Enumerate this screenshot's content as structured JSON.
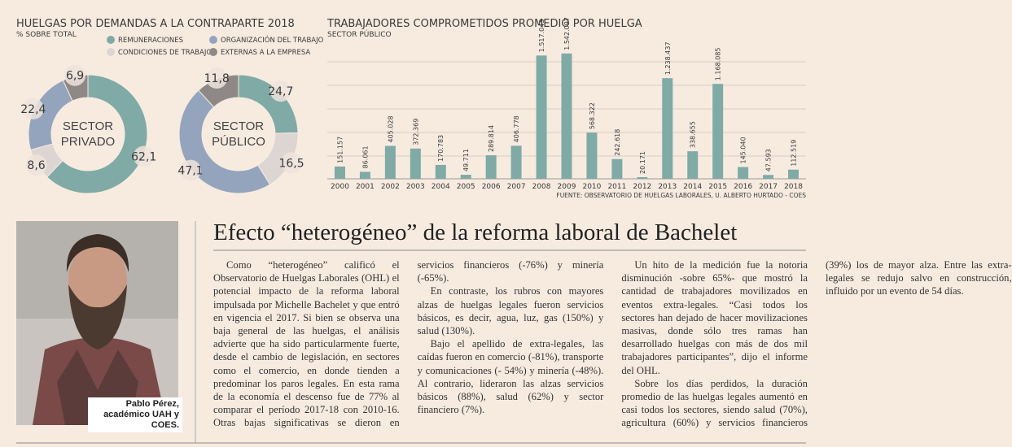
{
  "chart_data": [
    {
      "type": "donut",
      "title": "HUELGAS POR DEMANDAS A LA CONTRAPARTE 2018",
      "subtitle": "% SOBRE TOTAL",
      "categories": [
        "REMUNERACIONES",
        "CONDICIONES DE TRABAJO",
        "ORGANIZACIÓN DEL TRABAJO",
        "EXTERNAS A LA EMPRESA"
      ],
      "colors": [
        "#7faaa6",
        "#dcd5d1",
        "#94a4bd",
        "#8e8986"
      ],
      "series": [
        {
          "name": "SECTOR PRIVADO",
          "values": [
            62.1,
            8.6,
            22.4,
            6.9
          ],
          "value_labels": [
            "62,1",
            "8,6",
            "22,4",
            "6,9"
          ]
        },
        {
          "name": "SECTOR PÚBLICO",
          "values": [
            24.7,
            16.5,
            47.1,
            11.8
          ],
          "value_labels": [
            "24,7",
            "16,5",
            "47,1",
            "11,8"
          ]
        }
      ]
    },
    {
      "type": "bar",
      "title": "TRABAJADORES COMPROMETIDOS PROMEDIO POR HUELGA",
      "subtitle": "SECTOR PÚBLICO",
      "categories": [
        "2000",
        "2001",
        "2002",
        "2003",
        "2004",
        "2005",
        "2006",
        "2007",
        "2008",
        "2009",
        "2010",
        "2011",
        "2012",
        "2013",
        "2014",
        "2015",
        "2016",
        "2017",
        "2018"
      ],
      "values": [
        151157,
        86061,
        405028,
        372369,
        170783,
        49711,
        289814,
        406778,
        1517043,
        1542097,
        568322,
        242618,
        20171,
        1238437,
        338655,
        1168085,
        145040,
        47593,
        112519
      ],
      "value_labels": [
        "151.157",
        "86.061",
        "405.028",
        "372.369",
        "170.783",
        "49.711",
        "289.814",
        "406.778",
        "1.517.043",
        "1.542.097",
        "568.322",
        "242.618",
        "20.171",
        "1.238.437",
        "338.655",
        "1.168.085",
        "145.040",
        "47.593",
        "112.519"
      ],
      "color": "#7faaa6",
      "ylim": [
        0,
        1600000
      ],
      "source": "FUENTE: OBSERVATORIO DE HUELGAS LABORALES, U. ALBERTO HURTADO - COES"
    }
  ],
  "article": {
    "headline": "Efecto “heterogéneo” de la reforma laboral de Bachelet",
    "photo_caption": "Pablo Pérez, académico UAH y COES.",
    "paragraphs": [
      "Como “heterogéneo” calificó el Observatorio de Huelgas Laborales (OHL) el potencial impacto de la reforma laboral impulsada por Michelle Bachelet y que entró en vigencia el 2017. Si bien se observa una baja general de las huelgas, el análisis advierte que ha sido particularmente fuerte, desde el cambio de legislación, en sectores como el comercio, en donde tienden a predominar los paros legales. En esta rama de la economía el descenso fue de 77% al comparar el período 2017-18 con 2010-16. Otras bajas significativas se dieron en servicios financieros (-76%) y minería (-65%).",
      "En contraste, los rubros con mayores alzas de huelgas legales fueron servicios básicos, es decir, agua, luz, gas (150%) y salud (130%).",
      "Bajo el apellido de extra-legales, las caídas fueron en comercio (-81%), transporte y comunicaciones (- 54%) y minería (-48%). Al contrario, lideraron las alzas servicios básicos (88%), salud (62%) y sector financiero (7%).",
      "Un hito de la medición fue la notoria disminución -sobre 65%- que mostró la cantidad de trabajadores movilizados en eventos extra-legales. “Casi todos los sectores han dejado de hacer movilizaciones masivas, donde sólo tres ramas han desarrollado huelgas con más de dos mil trabajadores participantes”, dijo el informe del OHL.",
      "Sobre los días perdidos, la duración promedio de las huelgas legales aumentó en casi todos los sectores, siendo salud (70%), agricultura (60%) y servicios financieros (39%) los de mayor alza. Entre las extra-legales se redujo salvo en construcción, influido por un evento de 54 días."
    ]
  }
}
